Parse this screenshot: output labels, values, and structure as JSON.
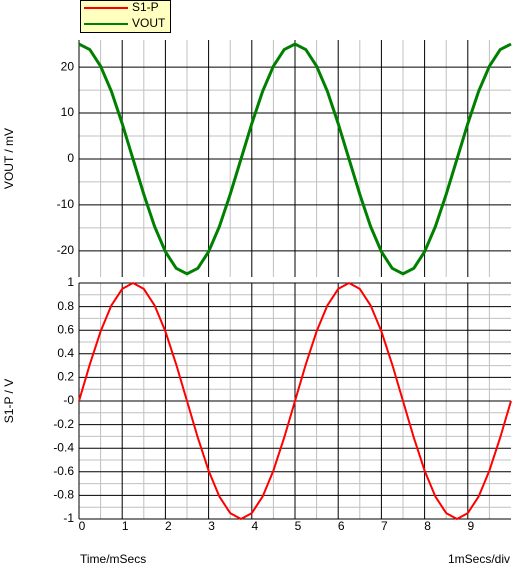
{
  "chart_data": [
    {
      "type": "line",
      "ylabel": "VOUT / mV",
      "x": [
        0,
        0.25,
        0.5,
        0.75,
        1,
        1.25,
        1.5,
        1.75,
        2,
        2.25,
        2.5,
        2.75,
        3,
        3.25,
        3.5,
        3.75,
        4,
        4.25,
        4.5,
        4.75,
        5,
        5.25,
        5.5,
        5.75,
        6,
        6.25,
        6.5,
        6.75,
        7,
        7.25,
        7.5,
        7.75,
        8,
        8.25,
        8.5,
        8.75,
        9,
        9.25,
        9.5,
        9.75,
        10
      ],
      "series": [
        {
          "name": "VOUT",
          "color": "#008000",
          "values": [
            25,
            23.8,
            20.2,
            14.7,
            7.7,
            0,
            -7.7,
            -14.7,
            -20.2,
            -23.8,
            -25,
            -23.8,
            -20.2,
            -14.7,
            -7.7,
            0,
            7.7,
            14.7,
            20.2,
            23.8,
            25,
            23.8,
            20.2,
            14.7,
            7.7,
            0,
            -7.7,
            -14.7,
            -20.2,
            -23.8,
            -25,
            -23.8,
            -20.2,
            -14.7,
            -7.7,
            0,
            7.7,
            14.7,
            20.2,
            23.8,
            25
          ]
        }
      ],
      "xlim": [
        0,
        10
      ],
      "xticks": [
        0,
        1,
        2,
        3,
        4,
        5,
        6,
        7,
        8,
        9
      ],
      "ylim": [
        -25.7,
        25.9
      ],
      "yticks": [
        20,
        10,
        0,
        -10,
        -20
      ],
      "grid": true,
      "minor_grid": true
    },
    {
      "type": "line",
      "ylabel": "S1-P / V",
      "xlabel": "Time/mSecs",
      "x_scale_label": "1mSecs/div",
      "x": [
        0,
        0.25,
        0.5,
        0.75,
        1,
        1.25,
        1.5,
        1.75,
        2,
        2.25,
        2.5,
        2.75,
        3,
        3.25,
        3.5,
        3.75,
        4,
        4.25,
        4.5,
        4.75,
        5,
        5.25,
        5.5,
        5.75,
        6,
        6.25,
        6.5,
        6.75,
        7,
        7.25,
        7.5,
        7.75,
        8,
        8.25,
        8.5,
        8.75,
        9,
        9.25,
        9.5,
        9.75,
        10
      ],
      "series": [
        {
          "name": "S1-P",
          "color": "#ff0000",
          "values": [
            0,
            0.31,
            0.59,
            0.81,
            0.95,
            1,
            0.95,
            0.81,
            0.59,
            0.31,
            0,
            -0.31,
            -0.59,
            -0.81,
            -0.95,
            -1,
            -0.95,
            -0.81,
            -0.59,
            -0.31,
            0,
            0.31,
            0.59,
            0.81,
            0.95,
            1,
            0.95,
            0.81,
            0.59,
            0.31,
            0,
            -0.31,
            -0.59,
            -0.81,
            -0.95,
            -1,
            -0.95,
            -0.81,
            -0.59,
            -0.31,
            0
          ]
        }
      ],
      "xlim": [
        0,
        10
      ],
      "xticks": [
        0,
        1,
        2,
        3,
        4,
        5,
        6,
        7,
        8,
        9
      ],
      "ylim": [
        -1,
        1
      ],
      "yticks": [
        1,
        0.8,
        0.6,
        0.4,
        0.2,
        {
          "value": 0,
          "label": "-0"
        },
        -0.2,
        -0.4,
        -0.6,
        -0.8,
        -1
      ],
      "grid": true,
      "minor_grid": true,
      "legend": "top-left"
    }
  ]
}
